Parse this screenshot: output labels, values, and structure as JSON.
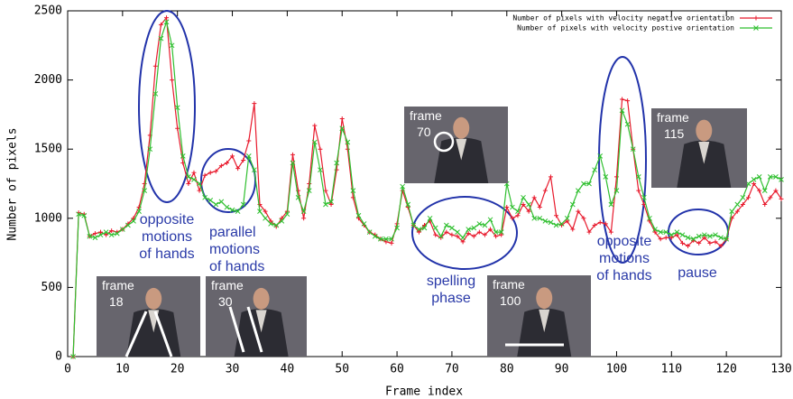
{
  "chart_data": {
    "type": "line",
    "xlabel": "Frame index",
    "ylabel": "Number of pixels",
    "xlim": [
      0,
      130
    ],
    "ylim": [
      0,
      2500
    ],
    "xticks": [
      0,
      10,
      20,
      30,
      40,
      50,
      60,
      70,
      80,
      90,
      100,
      110,
      120,
      130
    ],
    "yticks": [
      0,
      500,
      1000,
      1500,
      2000,
      2500
    ],
    "grid": false,
    "legend": "top-right",
    "x": [
      1,
      2,
      3,
      4,
      5,
      6,
      7,
      8,
      9,
      10,
      11,
      12,
      13,
      14,
      15,
      16,
      17,
      18,
      19,
      20,
      21,
      22,
      23,
      24,
      25,
      26,
      27,
      28,
      29,
      30,
      31,
      32,
      33,
      34,
      35,
      36,
      37,
      38,
      39,
      40,
      41,
      42,
      43,
      44,
      45,
      46,
      47,
      48,
      49,
      50,
      51,
      52,
      53,
      54,
      55,
      56,
      57,
      58,
      59,
      60,
      61,
      62,
      63,
      64,
      65,
      66,
      67,
      68,
      69,
      70,
      71,
      72,
      73,
      74,
      75,
      76,
      77,
      78,
      79,
      80,
      81,
      82,
      83,
      84,
      85,
      86,
      87,
      88,
      89,
      90,
      91,
      92,
      93,
      94,
      95,
      96,
      97,
      98,
      99,
      100,
      101,
      102,
      103,
      104,
      105,
      106,
      107,
      108,
      109,
      110,
      111,
      112,
      113,
      114,
      115,
      116,
      117,
      118,
      119,
      120,
      121,
      122,
      123,
      124,
      125,
      126,
      127,
      128,
      129,
      130
    ],
    "series": [
      {
        "name": "Number of pixels with velocity negative orientation",
        "color": "#e8192c",
        "marker": "+",
        "values": [
          0,
          1040,
          1030,
          870,
          890,
          900,
          880,
          910,
          900,
          920,
          960,
          1000,
          1080,
          1250,
          1600,
          2100,
          2400,
          2450,
          2000,
          1650,
          1400,
          1250,
          1330,
          1200,
          1310,
          1330,
          1340,
          1380,
          1400,
          1450,
          1360,
          1420,
          1560,
          1830,
          1100,
          1050,
          980,
          940,
          1000,
          1050,
          1460,
          1200,
          1000,
          1250,
          1670,
          1500,
          1200,
          1100,
          1350,
          1720,
          1500,
          1150,
          1000,
          950,
          900,
          880,
          850,
          830,
          820,
          960,
          1200,
          1080,
          950,
          900,
          950,
          980,
          880,
          860,
          900,
          880,
          870,
          830,
          890,
          870,
          900,
          880,
          920,
          870,
          880,
          1080,
          1000,
          1020,
          1100,
          1050,
          1150,
          1080,
          1200,
          1300,
          1020,
          950,
          980,
          920,
          1050,
          1000,
          900,
          950,
          970,
          960,
          900,
          1300,
          1860,
          1850,
          1500,
          1200,
          1100,
          980,
          900,
          850,
          860,
          860,
          880,
          820,
          800,
          840,
          820,
          860,
          820,
          830,
          800,
          850,
          1000,
          1050,
          1100,
          1150,
          1250,
          1200,
          1100,
          1150,
          1200,
          1140
        ]
      },
      {
        "name": "Number of pixels with velocity postive orientation",
        "color": "#2fbf2f",
        "marker": "x",
        "values": [
          0,
          1030,
          1020,
          870,
          860,
          880,
          900,
          880,
          890,
          920,
          950,
          980,
          1050,
          1200,
          1500,
          1900,
          2300,
          2420,
          2250,
          1800,
          1450,
          1300,
          1280,
          1250,
          1150,
          1130,
          1100,
          1120,
          1080,
          1060,
          1050,
          1100,
          1450,
          1350,
          1050,
          1000,
          960,
          950,
          980,
          1030,
          1400,
          1150,
          1050,
          1200,
          1550,
          1350,
          1100,
          1120,
          1400,
          1650,
          1550,
          1200,
          1020,
          960,
          900,
          870,
          850,
          850,
          850,
          930,
          1230,
          1100,
          950,
          920,
          930,
          1000,
          930,
          870,
          950,
          930,
          900,
          860,
          920,
          930,
          960,
          950,
          990,
          900,
          900,
          1250,
          1080,
          1050,
          1150,
          1100,
          1000,
          1000,
          980,
          970,
          950,
          960,
          1000,
          1100,
          1200,
          1250,
          1250,
          1350,
          1450,
          1300,
          1100,
          1200,
          1780,
          1680,
          1500,
          1300,
          1150,
          1000,
          920,
          900,
          900,
          880,
          900,
          880,
          860,
          850,
          870,
          880,
          870,
          880,
          860,
          850,
          1050,
          1100,
          1150,
          1250,
          1280,
          1300,
          1200,
          1300,
          1300,
          1280
        ]
      }
    ],
    "annotations": [
      {
        "lines": [
          "opposite",
          "motions",
          "of hands"
        ]
      },
      {
        "lines": [
          "parallel",
          "motions",
          "of hands"
        ]
      },
      {
        "lines": [
          "spelling",
          "phase"
        ]
      },
      {
        "lines": [
          "opposite",
          "motions",
          "of hands"
        ]
      },
      {
        "lines": [
          "pause"
        ]
      }
    ],
    "insets": [
      {
        "lines": [
          "frame",
          "18"
        ]
      },
      {
        "lines": [
          "frame",
          "30"
        ]
      },
      {
        "lines": [
          "frame",
          "70"
        ]
      },
      {
        "lines": [
          "frame",
          "100"
        ]
      },
      {
        "lines": [
          "frame",
          "115"
        ]
      }
    ]
  }
}
